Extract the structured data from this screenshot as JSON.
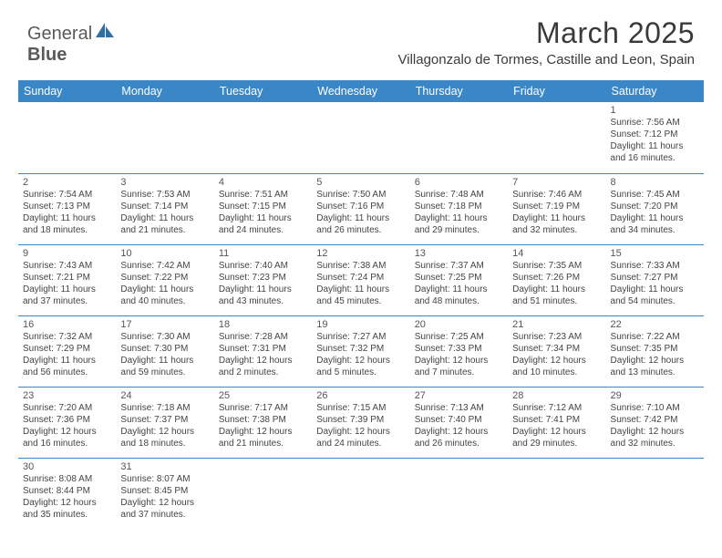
{
  "brand": {
    "part1": "General",
    "part2": "Blue"
  },
  "title": "March 2025",
  "location": "Villagonzalo de Tormes, Castille and Leon, Spain",
  "colors": {
    "header_bg": "#3a87c8",
    "header_text": "#ffffff",
    "cell_border": "#3a87c8",
    "daynum_color": "#555555",
    "info_color": "#444444",
    "title_color": "#3a3a3a",
    "logo_text_color": "#5a5a5a",
    "logo_icon_color": "#2f6fa8"
  },
  "weekdays": [
    "Sunday",
    "Monday",
    "Tuesday",
    "Wednesday",
    "Thursday",
    "Friday",
    "Saturday"
  ],
  "weeks": [
    [
      null,
      null,
      null,
      null,
      null,
      null,
      {
        "d": "1",
        "sr": "7:56 AM",
        "ss": "7:12 PM",
        "dl": "11 hours and 16 minutes."
      }
    ],
    [
      {
        "d": "2",
        "sr": "7:54 AM",
        "ss": "7:13 PM",
        "dl": "11 hours and 18 minutes."
      },
      {
        "d": "3",
        "sr": "7:53 AM",
        "ss": "7:14 PM",
        "dl": "11 hours and 21 minutes."
      },
      {
        "d": "4",
        "sr": "7:51 AM",
        "ss": "7:15 PM",
        "dl": "11 hours and 24 minutes."
      },
      {
        "d": "5",
        "sr": "7:50 AM",
        "ss": "7:16 PM",
        "dl": "11 hours and 26 minutes."
      },
      {
        "d": "6",
        "sr": "7:48 AM",
        "ss": "7:18 PM",
        "dl": "11 hours and 29 minutes."
      },
      {
        "d": "7",
        "sr": "7:46 AM",
        "ss": "7:19 PM",
        "dl": "11 hours and 32 minutes."
      },
      {
        "d": "8",
        "sr": "7:45 AM",
        "ss": "7:20 PM",
        "dl": "11 hours and 34 minutes."
      }
    ],
    [
      {
        "d": "9",
        "sr": "7:43 AM",
        "ss": "7:21 PM",
        "dl": "11 hours and 37 minutes."
      },
      {
        "d": "10",
        "sr": "7:42 AM",
        "ss": "7:22 PM",
        "dl": "11 hours and 40 minutes."
      },
      {
        "d": "11",
        "sr": "7:40 AM",
        "ss": "7:23 PM",
        "dl": "11 hours and 43 minutes."
      },
      {
        "d": "12",
        "sr": "7:38 AM",
        "ss": "7:24 PM",
        "dl": "11 hours and 45 minutes."
      },
      {
        "d": "13",
        "sr": "7:37 AM",
        "ss": "7:25 PM",
        "dl": "11 hours and 48 minutes."
      },
      {
        "d": "14",
        "sr": "7:35 AM",
        "ss": "7:26 PM",
        "dl": "11 hours and 51 minutes."
      },
      {
        "d": "15",
        "sr": "7:33 AM",
        "ss": "7:27 PM",
        "dl": "11 hours and 54 minutes."
      }
    ],
    [
      {
        "d": "16",
        "sr": "7:32 AM",
        "ss": "7:29 PM",
        "dl": "11 hours and 56 minutes."
      },
      {
        "d": "17",
        "sr": "7:30 AM",
        "ss": "7:30 PM",
        "dl": "11 hours and 59 minutes."
      },
      {
        "d": "18",
        "sr": "7:28 AM",
        "ss": "7:31 PM",
        "dl": "12 hours and 2 minutes."
      },
      {
        "d": "19",
        "sr": "7:27 AM",
        "ss": "7:32 PM",
        "dl": "12 hours and 5 minutes."
      },
      {
        "d": "20",
        "sr": "7:25 AM",
        "ss": "7:33 PM",
        "dl": "12 hours and 7 minutes."
      },
      {
        "d": "21",
        "sr": "7:23 AM",
        "ss": "7:34 PM",
        "dl": "12 hours and 10 minutes."
      },
      {
        "d": "22",
        "sr": "7:22 AM",
        "ss": "7:35 PM",
        "dl": "12 hours and 13 minutes."
      }
    ],
    [
      {
        "d": "23",
        "sr": "7:20 AM",
        "ss": "7:36 PM",
        "dl": "12 hours and 16 minutes."
      },
      {
        "d": "24",
        "sr": "7:18 AM",
        "ss": "7:37 PM",
        "dl": "12 hours and 18 minutes."
      },
      {
        "d": "25",
        "sr": "7:17 AM",
        "ss": "7:38 PM",
        "dl": "12 hours and 21 minutes."
      },
      {
        "d": "26",
        "sr": "7:15 AM",
        "ss": "7:39 PM",
        "dl": "12 hours and 24 minutes."
      },
      {
        "d": "27",
        "sr": "7:13 AM",
        "ss": "7:40 PM",
        "dl": "12 hours and 26 minutes."
      },
      {
        "d": "28",
        "sr": "7:12 AM",
        "ss": "7:41 PM",
        "dl": "12 hours and 29 minutes."
      },
      {
        "d": "29",
        "sr": "7:10 AM",
        "ss": "7:42 PM",
        "dl": "12 hours and 32 minutes."
      }
    ],
    [
      {
        "d": "30",
        "sr": "8:08 AM",
        "ss": "8:44 PM",
        "dl": "12 hours and 35 minutes."
      },
      {
        "d": "31",
        "sr": "8:07 AM",
        "ss": "8:45 PM",
        "dl": "12 hours and 37 minutes."
      },
      null,
      null,
      null,
      null,
      null
    ]
  ],
  "labels": {
    "sunrise": "Sunrise: ",
    "sunset": "Sunset: ",
    "daylight": "Daylight: "
  }
}
